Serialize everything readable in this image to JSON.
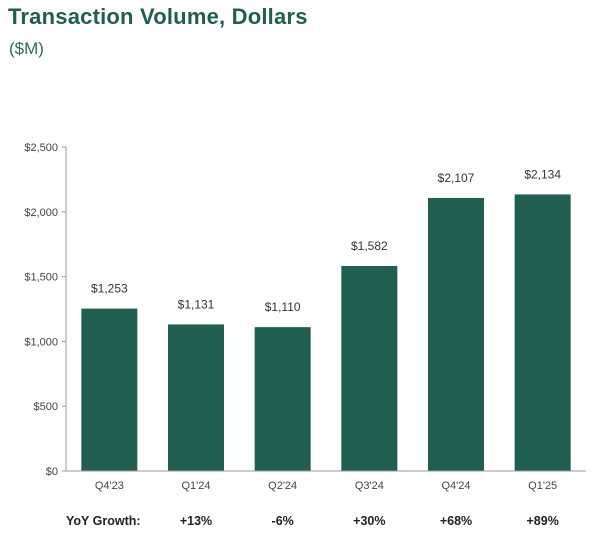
{
  "header": {
    "title": "Transaction Volume, Dollars",
    "subtitle": "($M)"
  },
  "colors": {
    "bar": "#215f53",
    "title": "#1f5e50",
    "axis": "#9a9a9a"
  },
  "chart_data": {
    "type": "bar",
    "title": "Transaction Volume, Dollars",
    "subtitle": "($M)",
    "categories": [
      "Q4'23",
      "Q1'24",
      "Q2'24",
      "Q3'24",
      "Q4'24",
      "Q1'25"
    ],
    "values": [
      1253,
      1131,
      1110,
      1582,
      2107,
      2134
    ],
    "data_labels": [
      "$1,253",
      "$1,131",
      "$1,110",
      "$1,582",
      "$2,107",
      "$2,134"
    ],
    "yticks": [
      0,
      500,
      1000,
      1500,
      2000,
      2500
    ],
    "ytick_labels": [
      "$0",
      "$500",
      "$1,000",
      "$1,500",
      "$2,000",
      "$2,500"
    ],
    "ylim": [
      0,
      2500
    ],
    "grid": false,
    "yoy_growth": {
      "label": "YoY Growth:",
      "values": [
        "+13%",
        "-6%",
        "+30%",
        "+68%",
        "+89%"
      ]
    }
  }
}
